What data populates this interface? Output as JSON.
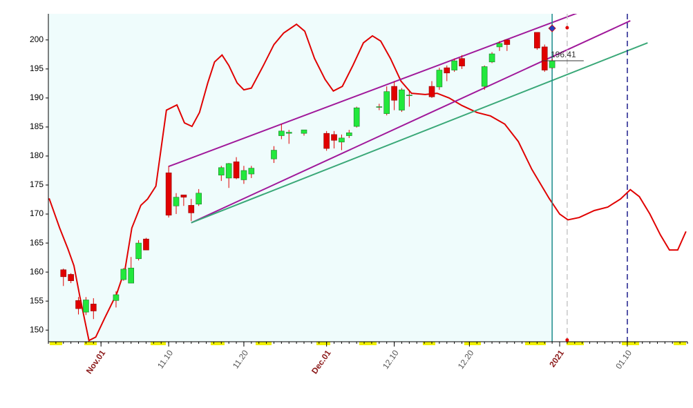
{
  "chart_data": {
    "type": "candlestick",
    "up_color": "#22e83c",
    "down_color": "#e00000",
    "xlim": [
      -7,
      78
    ],
    "ylim": [
      148,
      204.5
    ],
    "yticks": [
      150,
      155,
      160,
      165,
      170,
      175,
      180,
      185,
      190,
      195,
      200
    ],
    "xticks": [
      {
        "value": 0,
        "label": "Nov.01"
      },
      {
        "value": 9,
        "label": "11.10"
      },
      {
        "value": 19,
        "label": "11.20"
      },
      {
        "value": 30,
        "label": "Dec.01"
      },
      {
        "value": 39,
        "label": "12.10"
      },
      {
        "value": 49,
        "label": "12.20"
      },
      {
        "value": 61,
        "label": "2021"
      },
      {
        "value": 70,
        "label": "01.10"
      }
    ],
    "shade_until": 60,
    "shade_color": "#effcfc",
    "x": [
      -5,
      -4,
      -3,
      -2,
      -1,
      2,
      3,
      4,
      5,
      6,
      9,
      10,
      11,
      12,
      13,
      16,
      17,
      18,
      19,
      20,
      23,
      24,
      25,
      27,
      30,
      31,
      32,
      33,
      34,
      37,
      38,
      39,
      40,
      41,
      44,
      45,
      46,
      47,
      48,
      51,
      52,
      53,
      54,
      58,
      59,
      60
    ],
    "open": [
      160.4,
      159.6,
      155.1,
      153.1,
      154.5,
      155.1,
      158.7,
      158.1,
      162.3,
      165.7,
      177.1,
      171.4,
      173.3,
      171.5,
      171.7,
      176.7,
      176.2,
      179,
      175.9,
      176.9,
      179.5,
      183.5,
      183.9,
      183.9,
      183.9,
      183.7,
      182.4,
      183.5,
      185.1,
      188.4,
      187.3,
      192,
      187.9,
      190.4,
      192,
      191.9,
      195.2,
      194.8,
      196.8,
      192,
      196.2,
      198.8,
      200,
      201.3,
      198.8,
      195.2
    ],
    "high": [
      160.6,
      159.8,
      155.7,
      155.7,
      155.5,
      156.7,
      160.7,
      162.6,
      165.5,
      165.9,
      178.3,
      173.6,
      173.3,
      172.6,
      174.3,
      178.3,
      178.8,
      179.8,
      178.3,
      178.3,
      181.7,
      185.5,
      184.5,
      184.5,
      184.3,
      184.3,
      183.7,
      184.5,
      188.5,
      189,
      192,
      192.9,
      191.7,
      191.4,
      192.9,
      195.2,
      195.6,
      196.8,
      197.4,
      195.6,
      197.9,
      199.8,
      200,
      201.3,
      199.2,
      196.8
    ],
    "low": [
      157.6,
      158.1,
      152.7,
      152.6,
      151.9,
      153.9,
      158.5,
      158.1,
      162,
      163.8,
      169.4,
      170,
      171.4,
      168.8,
      171.4,
      175.7,
      174.5,
      176,
      175.2,
      176.2,
      178.8,
      182.9,
      182.1,
      183.5,
      180.9,
      181.3,
      181,
      183.1,
      184.9,
      187.9,
      187,
      187.9,
      187.6,
      188.5,
      190,
      191.4,
      192.9,
      194.5,
      195,
      191.4,
      196,
      198.1,
      198.1,
      198.3,
      194.5,
      195
    ],
    "close": [
      159.2,
      158.5,
      153.7,
      155.2,
      153.3,
      156.1,
      160.5,
      160.7,
      165,
      163.8,
      169.8,
      172.9,
      172.9,
      170.2,
      173.6,
      178,
      178.7,
      176.2,
      177.5,
      177.9,
      181,
      184.3,
      184.1,
      184.5,
      181.3,
      182.7,
      183.1,
      184,
      188.3,
      188.5,
      191.1,
      189.6,
      191.4,
      190.5,
      190.2,
      194.8,
      194.3,
      196.4,
      195.5,
      195.4,
      197.6,
      199.4,
      199.2,
      198.6,
      194.8,
      196.4
    ],
    "curve": {
      "color": "#e00000",
      "x": [
        -6.9,
        -5.5,
        -4.4,
        -3.6,
        -2.8,
        -1.6,
        -0.7,
        0.5,
        2.1,
        3.2,
        4.1,
        5.3,
        6.2,
        7.3,
        8.7,
        10.1,
        11.1,
        12.1,
        13.1,
        14.2,
        15.1,
        16.1,
        17,
        18.1,
        19,
        20,
        21.6,
        23,
        24.3,
        26,
        27.1,
        28.4,
        29.8,
        30.9,
        32.1,
        33.5,
        34.9,
        36.1,
        37.2,
        38.5,
        39.9,
        41.3,
        43.1,
        44.7,
        46.3,
        48,
        50,
        51.8,
        53.7,
        55.5,
        57.3,
        59.6,
        61,
        62.1,
        63.6,
        65.6,
        67.4,
        69.1,
        70.4,
        71.6,
        73,
        74.4,
        75.6,
        76.7,
        77.8
      ],
      "values": [
        172.7,
        167.6,
        164,
        161.1,
        155.7,
        148.2,
        148.8,
        152.1,
        156.3,
        160.5,
        167.6,
        171.5,
        172.6,
        174.8,
        187.9,
        188.8,
        185.7,
        185.1,
        187.5,
        192.6,
        196.2,
        197.4,
        195.6,
        192.6,
        191.4,
        191.7,
        195.6,
        199.2,
        201.2,
        202.7,
        201.5,
        196.8,
        193.2,
        191.2,
        192,
        195.6,
        199.5,
        200.7,
        199.8,
        196.8,
        192.9,
        190.8,
        190.6,
        190.8,
        190,
        188.7,
        187.5,
        186.9,
        185.5,
        182.5,
        177.7,
        172.7,
        170,
        169,
        169.4,
        170.6,
        171.2,
        172.6,
        174.2,
        173,
        170,
        166.4,
        163.8,
        163.8,
        167
      ]
    },
    "trendlines": [
      {
        "color": "#a0189a",
        "x": [
          9,
          67
        ],
        "values": [
          178.2,
          206.4
        ]
      },
      {
        "color": "#a0189a",
        "x": [
          12,
          70.4
        ],
        "values": [
          168.5,
          203.3
        ]
      },
      {
        "color": "#3aa878",
        "x": [
          12,
          72.7
        ],
        "values": [
          168.5,
          199.5
        ]
      }
    ],
    "vlines": [
      {
        "x": 60,
        "color": "#1a8a8a",
        "dashed": false
      },
      {
        "x": 62,
        "color": "#c8c8c8",
        "dashed": true
      },
      {
        "x": 70,
        "color": "#1a1a8a",
        "dashed": true
      }
    ],
    "price_line": {
      "value": 196.41,
      "x": [
        58.7,
        64.2
      ],
      "color": "#333333"
    },
    "markers": [
      {
        "x": 60,
        "value": 202,
        "shape": "diamond",
        "color": "#2040c0"
      },
      {
        "x": 62,
        "value": 202.1,
        "shape": "dot",
        "color": "#e00000"
      },
      {
        "x": 62,
        "value": 148.3,
        "shape": "dot",
        "color": "#e00000"
      }
    ]
  }
}
